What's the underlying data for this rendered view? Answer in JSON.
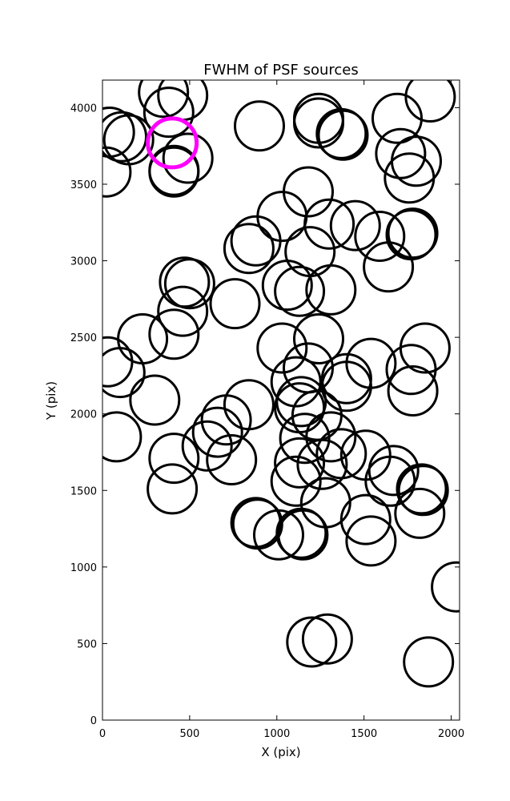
{
  "chart_data": {
    "type": "scatter",
    "title": "FWHM of PSF sources",
    "xlabel": "X (pix)",
    "ylabel": "Y (pix)",
    "xlim": [
      0,
      2048
    ],
    "ylim": [
      0,
      4180
    ],
    "xticks": [
      0,
      500,
      1000,
      1500,
      2000
    ],
    "yticks": [
      0,
      500,
      1000,
      1500,
      2000,
      2500,
      3000,
      3500,
      4000
    ],
    "grid": false,
    "legend": "none",
    "marker_radius_pix": 140,
    "series": [
      {
        "color": "#000000",
        "points": [
          [
            350,
            4100
          ],
          [
            460,
            4080
          ],
          [
            380,
            3970
          ],
          [
            40,
            3840
          ],
          [
            110,
            3810
          ],
          [
            150,
            3790
          ],
          [
            490,
            3670
          ],
          [
            410,
            3590
          ],
          [
            410,
            3580
          ],
          [
            20,
            3580
          ],
          [
            900,
            3880
          ],
          [
            1240,
            3930
          ],
          [
            1240,
            3900
          ],
          [
            1370,
            3830
          ],
          [
            1380,
            3820
          ],
          [
            1690,
            3930
          ],
          [
            1880,
            4070
          ],
          [
            1710,
            3700
          ],
          [
            1800,
            3650
          ],
          [
            1760,
            3540
          ],
          [
            1180,
            3450
          ],
          [
            1030,
            3290
          ],
          [
            1300,
            3240
          ],
          [
            1450,
            3230
          ],
          [
            1590,
            3160
          ],
          [
            1780,
            3180
          ],
          [
            1770,
            3170
          ],
          [
            880,
            3130
          ],
          [
            840,
            3080
          ],
          [
            1190,
            3060
          ],
          [
            1640,
            2960
          ],
          [
            470,
            2860
          ],
          [
            500,
            2850
          ],
          [
            460,
            2670
          ],
          [
            760,
            2720
          ],
          [
            1060,
            2840
          ],
          [
            1130,
            2800
          ],
          [
            1310,
            2810
          ],
          [
            410,
            2520
          ],
          [
            230,
            2490
          ],
          [
            1030,
            2430
          ],
          [
            1240,
            2490
          ],
          [
            1540,
            2330
          ],
          [
            1850,
            2430
          ],
          [
            30,
            2340
          ],
          [
            100,
            2270
          ],
          [
            1180,
            2300
          ],
          [
            1110,
            2210
          ],
          [
            1400,
            2230
          ],
          [
            1400,
            2180
          ],
          [
            1770,
            2290
          ],
          [
            1780,
            2150
          ],
          [
            300,
            2090
          ],
          [
            840,
            2060
          ],
          [
            1140,
            2080
          ],
          [
            1130,
            2040
          ],
          [
            1230,
            1990
          ],
          [
            710,
            1960
          ],
          [
            660,
            1880
          ],
          [
            600,
            1790
          ],
          [
            1160,
            1840
          ],
          [
            1310,
            1850
          ],
          [
            1370,
            1740
          ],
          [
            1510,
            1730
          ],
          [
            80,
            1850
          ],
          [
            410,
            1710
          ],
          [
            740,
            1700
          ],
          [
            1130,
            1680
          ],
          [
            1260,
            1670
          ],
          [
            1670,
            1630
          ],
          [
            1650,
            1560
          ],
          [
            1110,
            1560
          ],
          [
            1830,
            1510
          ],
          [
            1840,
            1500
          ],
          [
            400,
            1510
          ],
          [
            1280,
            1420
          ],
          [
            1820,
            1350
          ],
          [
            880,
            1290
          ],
          [
            890,
            1280
          ],
          [
            1510,
            1310
          ],
          [
            1540,
            1170
          ],
          [
            1010,
            1210
          ],
          [
            1140,
            1220
          ],
          [
            1150,
            1210
          ],
          [
            2030,
            870
          ],
          [
            1200,
            510
          ],
          [
            1290,
            530
          ],
          [
            1870,
            380
          ]
        ]
      },
      {
        "color": "#ff00ff",
        "points": [
          [
            400,
            3770
          ]
        ]
      }
    ]
  }
}
